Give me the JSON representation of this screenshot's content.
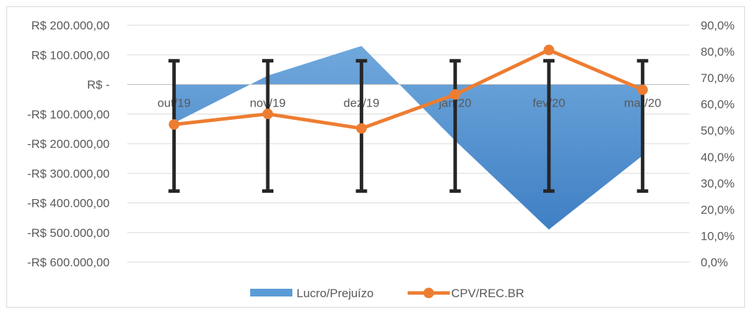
{
  "chart_data": {
    "type": "area",
    "categories": [
      "out/19",
      "nov/19",
      "dez/19",
      "jan/20",
      "fev/20",
      "mar/20"
    ],
    "y_left": {
      "ticks": [
        "R$ 200.000,00",
        "R$ 100.000,00",
        "R$ -",
        "-R$ 100.000,00",
        "-R$ 200.000,00",
        "-R$ 300.000,00",
        "-R$ 400.000,00",
        "-R$ 500.000,00",
        "-R$ 600.000,00"
      ],
      "range": [
        -600000,
        200000
      ]
    },
    "y_right": {
      "ticks": [
        "90,0%",
        "80,0%",
        "70,0%",
        "60,0%",
        "50,0%",
        "40,0%",
        "30,0%",
        "20,0%",
        "10,0%",
        "0,0%"
      ],
      "range": [
        0,
        90
      ]
    },
    "series": [
      {
        "name": "Lucro/Prejuízo",
        "type": "area",
        "axis": "left",
        "color": "#5b9bd5",
        "values": [
          -130000,
          30000,
          130000,
          -190000,
          -490000,
          -240000
        ]
      },
      {
        "name": "CPV/REC.BR",
        "type": "line",
        "axis": "right",
        "color": "#ed7d31",
        "values": [
          52.3,
          56.3,
          50.8,
          63.7,
          80.6,
          65.5
        ]
      }
    ],
    "error_bars": {
      "color": "#262626",
      "axis": "left",
      "top": 80000,
      "bottom": -360000
    },
    "grid": true,
    "legend": "bottom"
  }
}
